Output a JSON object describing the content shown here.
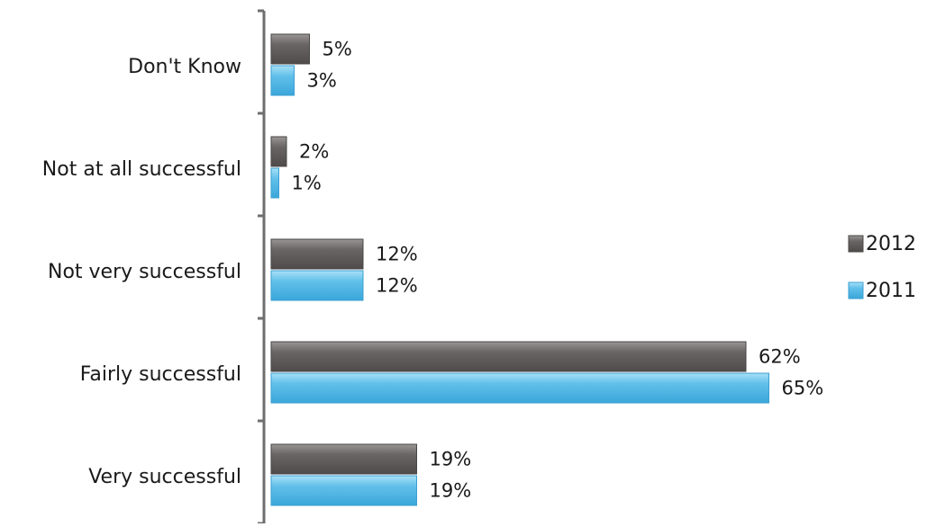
{
  "chart_data": {
    "type": "bar",
    "orientation": "horizontal",
    "categories": [
      "Don't Know",
      "Not at all successful",
      "Not very successful",
      "Fairly successful",
      "Very successful"
    ],
    "series": [
      {
        "name": "2012",
        "color": "#5f5b5b",
        "values": [
          5,
          2,
          12,
          62,
          19
        ],
        "labels": [
          "5%",
          "2%",
          "12%",
          "62%",
          "19%"
        ]
      },
      {
        "name": "2011",
        "color": "#5ab8e4",
        "values": [
          3,
          1,
          12,
          65,
          19
        ],
        "labels": [
          "3%",
          "1%",
          "12%",
          "65%",
          "19%"
        ]
      }
    ],
    "xlim": [
      0,
      100
    ],
    "grid": false,
    "legend_position": "right",
    "title": "",
    "xlabel": "",
    "ylabel": ""
  }
}
